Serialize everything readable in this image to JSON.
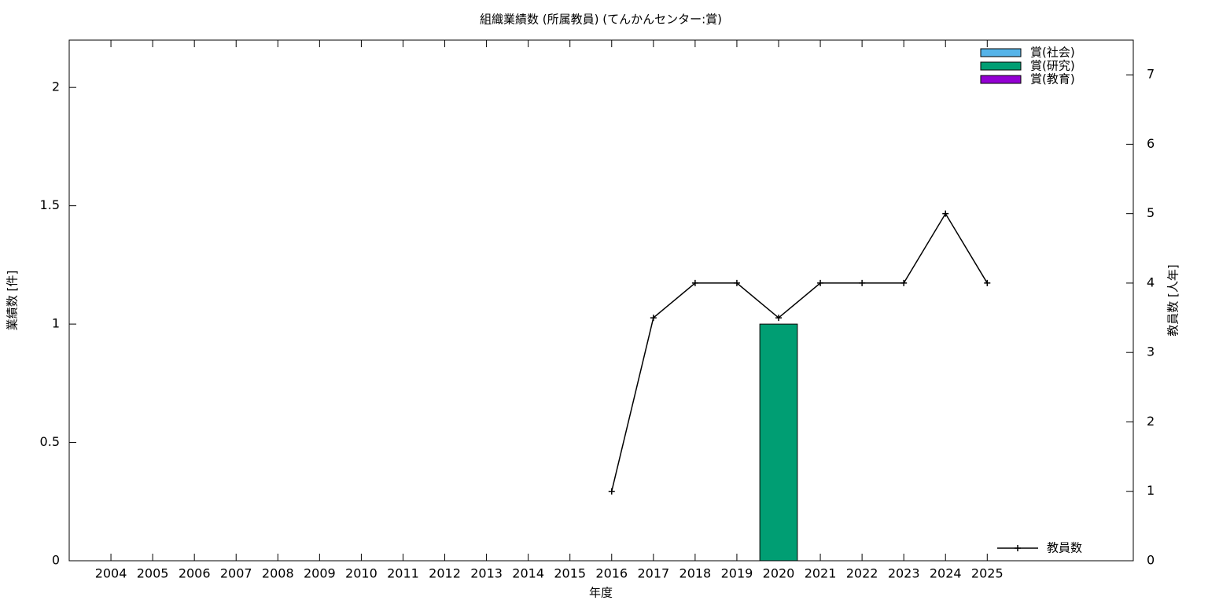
{
  "chart_data": {
    "type": "bar",
    "title": "組織業績数 (所属教員) (てんかんセンター:賞)",
    "x_label": "年度",
    "y_label": "業績数 [件]",
    "y2_label": "教員数 [人年]",
    "categories": [
      "2004",
      "2005",
      "2006",
      "2007",
      "2008",
      "2009",
      "2010",
      "2011",
      "2012",
      "2013",
      "2014",
      "2015",
      "2016",
      "2017",
      "2018",
      "2019",
      "2020",
      "2021",
      "2022",
      "2023",
      "2024",
      "2025"
    ],
    "series": [
      {
        "name": "賞(社会)",
        "color": "#56b4e9",
        "values": [
          0,
          0,
          0,
          0,
          0,
          0,
          0,
          0,
          0,
          0,
          0,
          0,
          0,
          0,
          0,
          0,
          0,
          0,
          0,
          0,
          0,
          0
        ]
      },
      {
        "name": "賞(研究)",
        "color": "#009e73",
        "values": [
          0,
          0,
          0,
          0,
          0,
          0,
          0,
          0,
          0,
          0,
          0,
          0,
          0,
          0,
          0,
          0,
          1,
          0,
          0,
          0,
          0,
          0
        ]
      },
      {
        "name": "賞(教育)",
        "color": "#9400d3",
        "values": [
          0,
          0,
          0,
          0,
          0,
          0,
          0,
          0,
          0,
          0,
          0,
          0,
          0,
          0,
          0,
          0,
          0,
          0,
          0,
          0,
          0,
          0
        ]
      },
      {
        "name": "教員数",
        "color": "#000000",
        "axis": "y2",
        "type": "line",
        "values": [
          null,
          null,
          null,
          null,
          null,
          null,
          null,
          null,
          null,
          null,
          null,
          null,
          1,
          3.5,
          4,
          4,
          3.5,
          4,
          4,
          4,
          5,
          4
        ]
      }
    ],
    "ylim": [
      0,
      2.2
    ],
    "yticks": [
      0,
      0.5,
      1,
      1.5,
      2
    ],
    "y2lim": [
      0,
      7.5
    ],
    "y2ticks": [
      0,
      1,
      2,
      3,
      4,
      5,
      6,
      7
    ],
    "grid": false
  }
}
